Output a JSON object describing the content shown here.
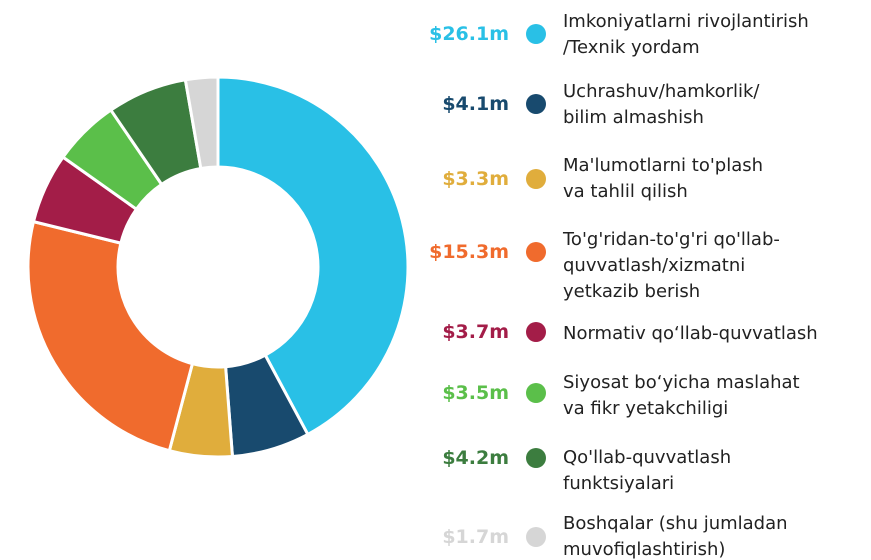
{
  "chart_data": {
    "type": "donut",
    "categories": [
      "Imkoniyatlarni rivojlantirish\n/Texnik yordam",
      "Uchrashuv/hamkorlik/\nbilim almashish",
      "Ma'lumotlarni to'plash\nva tahlil qilish",
      "To'g'ridan-to'g'ri qo'llab-\nquvvatlash/xizmatni\nyetkazib berish",
      "Normativ qo‘llab-quvvatlash",
      "Siyosat bo‘yicha maslahat\nva fikr yetakchiligi",
      "Qo'llab-quvvatlash\nfunktsiyalari",
      "Boshqalar (shu jumladan\nmuvofiqlashtirish)"
    ],
    "values": [
      26.1,
      4.1,
      3.3,
      15.3,
      3.7,
      3.5,
      4.2,
      1.7
    ],
    "value_labels": [
      "$26.1m",
      "$4.1m",
      "$3.3m",
      "$15.3m",
      "$3.7m",
      "$3.5m",
      "$4.2m",
      "$1.7m"
    ],
    "colors": [
      "#29c0e6",
      "#184a6e",
      "#e0ad3c",
      "#f06b2d",
      "#a31d48",
      "#5bbf4a",
      "#3c7d3f",
      "#d6d6d6"
    ]
  }
}
